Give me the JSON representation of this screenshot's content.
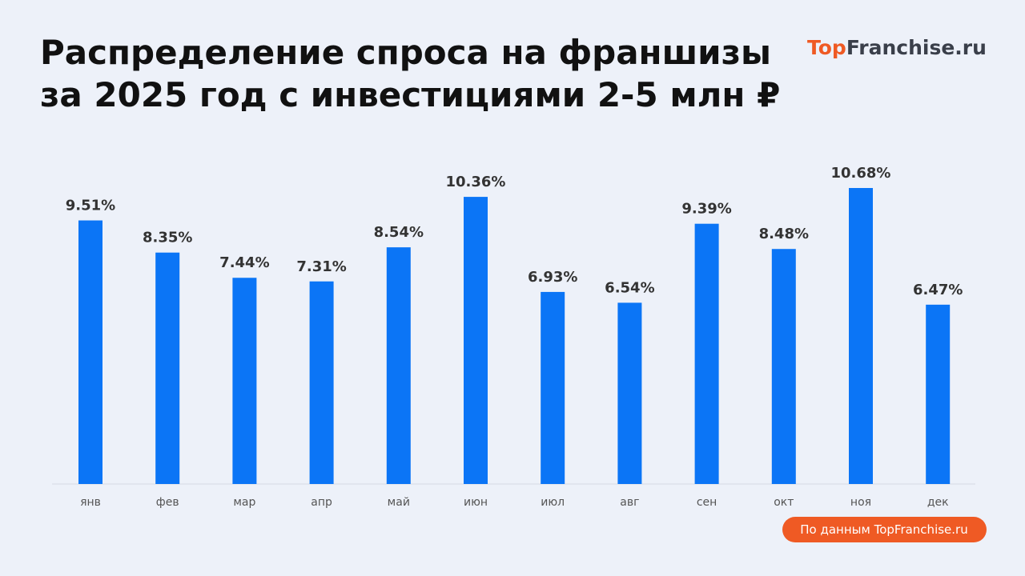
{
  "chart_data": {
    "type": "bar",
    "title": [
      "Распределение спроса на франшизы",
      "за 2025 год с инвестициями 2-5 млн ₽"
    ],
    "logo": {
      "accent": "Top",
      "rest": "Franchise.ru"
    },
    "source": "По данным TopFranchise.ru",
    "categories": [
      "янв",
      "фев",
      "мар",
      "апр",
      "май",
      "июн",
      "июл",
      "авг",
      "сен",
      "окт",
      "ноя",
      "дек"
    ],
    "values": [
      9.51,
      8.35,
      7.44,
      7.31,
      8.54,
      10.36,
      6.93,
      6.54,
      9.39,
      8.48,
      10.68,
      6.47
    ],
    "value_labels": [
      "9.51%",
      "8.35%",
      "7.44%",
      "7.31%",
      "8.54%",
      "10.36%",
      "6.93%",
      "6.54%",
      "9.39%",
      "8.48%",
      "10.68%",
      "6.47%"
    ],
    "color": "#0b75f6"
  }
}
